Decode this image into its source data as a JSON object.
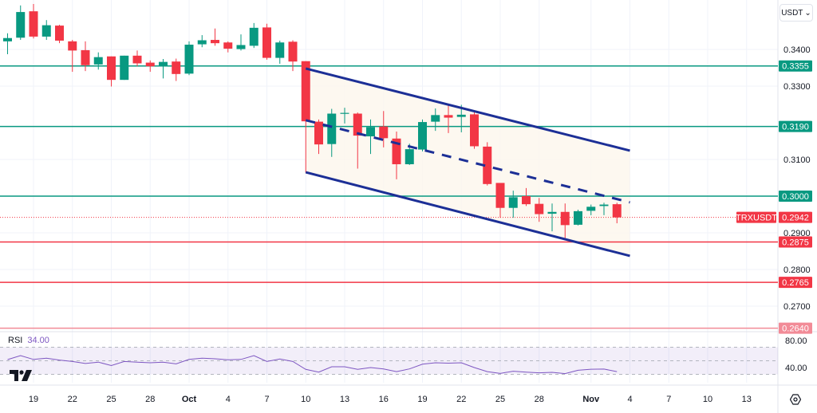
{
  "header": {
    "currency_button": "USDT",
    "currency_chevron": "chevron-down-icon"
  },
  "rsi": {
    "label": "RSI",
    "value": "34.00",
    "axis_labels": [
      "80.00",
      "40.00"
    ]
  },
  "colors": {
    "up": "#089981",
    "down": "#f23645",
    "channel": "#1c2f96",
    "rsi_line": "#7e57c2",
    "support_light": "#f28b97"
  },
  "chart_data": {
    "type": "candlestick",
    "symbol": "TRXUSDT",
    "last_price": "0.2942",
    "ylim": [
      0.2605,
      0.353
    ],
    "y_ticks": [
      "0.3400",
      "0.3300",
      "0.3100",
      "0.2900",
      "0.2800",
      "0.2700"
    ],
    "x_ticks": [
      {
        "label": "19",
        "date": "Sep 19"
      },
      {
        "label": "22",
        "date": "Sep 22"
      },
      {
        "label": "25",
        "date": "Sep 25"
      },
      {
        "label": "28",
        "date": "Sep 28"
      },
      {
        "label": "Oct",
        "date": "Oct 1",
        "bold": true
      },
      {
        "label": "4",
        "date": "Oct 4"
      },
      {
        "label": "7",
        "date": "Oct 7"
      },
      {
        "label": "10",
        "date": "Oct 10"
      },
      {
        "label": "13",
        "date": "Oct 13"
      },
      {
        "label": "16",
        "date": "Oct 16"
      },
      {
        "label": "19",
        "date": "Oct 19"
      },
      {
        "label": "22",
        "date": "Oct 22"
      },
      {
        "label": "25",
        "date": "Oct 25"
      },
      {
        "label": "28",
        "date": "Oct 28"
      },
      {
        "label": "Nov",
        "date": "Nov 1",
        "bold": true
      },
      {
        "label": "4",
        "date": "Nov 4"
      },
      {
        "label": "7",
        "date": "Nov 7"
      },
      {
        "label": "10",
        "date": "Nov 10"
      },
      {
        "label": "13",
        "date": "Nov 13"
      }
    ],
    "candles": [
      {
        "date": "Sep 17",
        "o": 0.3422,
        "h": 0.3444,
        "l": 0.3387,
        "c": 0.3431
      },
      {
        "date": "Sep 18",
        "o": 0.3432,
        "h": 0.352,
        "l": 0.3426,
        "c": 0.3502
      },
      {
        "date": "Sep 19",
        "o": 0.3504,
        "h": 0.3524,
        "l": 0.343,
        "c": 0.3435
      },
      {
        "date": "Sep 20",
        "o": 0.3435,
        "h": 0.348,
        "l": 0.3426,
        "c": 0.3466
      },
      {
        "date": "Sep 21",
        "o": 0.3465,
        "h": 0.3467,
        "l": 0.3417,
        "c": 0.3424
      },
      {
        "date": "Sep 22",
        "o": 0.3422,
        "h": 0.3426,
        "l": 0.3339,
        "c": 0.3397
      },
      {
        "date": "Sep 23",
        "o": 0.3398,
        "h": 0.3422,
        "l": 0.3341,
        "c": 0.3357
      },
      {
        "date": "Sep 24",
        "o": 0.3359,
        "h": 0.3392,
        "l": 0.3345,
        "c": 0.3379
      },
      {
        "date": "Sep 25",
        "o": 0.3381,
        "h": 0.3381,
        "l": 0.3299,
        "c": 0.3317
      },
      {
        "date": "Sep 26",
        "o": 0.3317,
        "h": 0.3383,
        "l": 0.3317,
        "c": 0.3383
      },
      {
        "date": "Sep 27",
        "o": 0.3383,
        "h": 0.3397,
        "l": 0.3354,
        "c": 0.3362
      },
      {
        "date": "Sep 28",
        "o": 0.3364,
        "h": 0.337,
        "l": 0.3339,
        "c": 0.3354
      },
      {
        "date": "Sep 29",
        "o": 0.3354,
        "h": 0.3374,
        "l": 0.3321,
        "c": 0.3366
      },
      {
        "date": "Sep 30",
        "o": 0.3367,
        "h": 0.3375,
        "l": 0.3314,
        "c": 0.3333
      },
      {
        "date": "Oct 1",
        "o": 0.3334,
        "h": 0.3422,
        "l": 0.333,
        "c": 0.3413
      },
      {
        "date": "Oct 2",
        "o": 0.3414,
        "h": 0.3439,
        "l": 0.3406,
        "c": 0.3425
      },
      {
        "date": "Oct 3",
        "o": 0.3426,
        "h": 0.3457,
        "l": 0.341,
        "c": 0.3417
      },
      {
        "date": "Oct 4",
        "o": 0.3419,
        "h": 0.3422,
        "l": 0.3392,
        "c": 0.3402
      },
      {
        "date": "Oct 5",
        "o": 0.3401,
        "h": 0.3441,
        "l": 0.3397,
        "c": 0.3412
      },
      {
        "date": "Oct 6",
        "o": 0.341,
        "h": 0.3472,
        "l": 0.3404,
        "c": 0.3459
      },
      {
        "date": "Oct 7",
        "o": 0.346,
        "h": 0.347,
        "l": 0.3372,
        "c": 0.3377
      },
      {
        "date": "Oct 8",
        "o": 0.3377,
        "h": 0.3424,
        "l": 0.3361,
        "c": 0.3419
      },
      {
        "date": "Oct 9",
        "o": 0.3421,
        "h": 0.3425,
        "l": 0.3341,
        "c": 0.3367
      },
      {
        "date": "Oct 10",
        "o": 0.3368,
        "h": 0.3368,
        "l": 0.3064,
        "c": 0.3204
      },
      {
        "date": "Oct 11",
        "o": 0.3203,
        "h": 0.3209,
        "l": 0.3115,
        "c": 0.3141
      },
      {
        "date": "Oct 12",
        "o": 0.3142,
        "h": 0.3238,
        "l": 0.3107,
        "c": 0.3225
      },
      {
        "date": "Oct 13",
        "o": 0.3225,
        "h": 0.3241,
        "l": 0.3198,
        "c": 0.3227
      },
      {
        "date": "Oct 14",
        "o": 0.3225,
        "h": 0.3228,
        "l": 0.3075,
        "c": 0.3165
      },
      {
        "date": "Oct 15",
        "o": 0.3163,
        "h": 0.3209,
        "l": 0.3115,
        "c": 0.3188
      },
      {
        "date": "Oct 16",
        "o": 0.319,
        "h": 0.3232,
        "l": 0.3133,
        "c": 0.3158
      },
      {
        "date": "Oct 17",
        "o": 0.3157,
        "h": 0.3176,
        "l": 0.3046,
        "c": 0.3087
      },
      {
        "date": "Oct 18",
        "o": 0.3087,
        "h": 0.3143,
        "l": 0.3085,
        "c": 0.3128
      },
      {
        "date": "Oct 19",
        "o": 0.3127,
        "h": 0.3209,
        "l": 0.3122,
        "c": 0.3202
      },
      {
        "date": "Oct 20",
        "o": 0.3203,
        "h": 0.3239,
        "l": 0.3178,
        "c": 0.3221
      },
      {
        "date": "Oct 21",
        "o": 0.3221,
        "h": 0.3251,
        "l": 0.3172,
        "c": 0.3214
      },
      {
        "date": "Oct 22",
        "o": 0.3216,
        "h": 0.3249,
        "l": 0.3174,
        "c": 0.3222
      },
      {
        "date": "Oct 23",
        "o": 0.3223,
        "h": 0.3232,
        "l": 0.3129,
        "c": 0.3136
      },
      {
        "date": "Oct 24",
        "o": 0.3135,
        "h": 0.3147,
        "l": 0.3029,
        "c": 0.3033
      },
      {
        "date": "Oct 25",
        "o": 0.3036,
        "h": 0.3036,
        "l": 0.2941,
        "c": 0.2968
      },
      {
        "date": "Oct 26",
        "o": 0.2968,
        "h": 0.3015,
        "l": 0.2941,
        "c": 0.2997
      },
      {
        "date": "Oct 27",
        "o": 0.3,
        "h": 0.3022,
        "l": 0.2973,
        "c": 0.2978
      },
      {
        "date": "Oct 28",
        "o": 0.2979,
        "h": 0.2995,
        "l": 0.293,
        "c": 0.2951
      },
      {
        "date": "Oct 29",
        "o": 0.2952,
        "h": 0.298,
        "l": 0.2904,
        "c": 0.2957
      },
      {
        "date": "Oct 30",
        "o": 0.2957,
        "h": 0.298,
        "l": 0.2883,
        "c": 0.2921
      },
      {
        "date": "Oct 31",
        "o": 0.2922,
        "h": 0.2963,
        "l": 0.292,
        "c": 0.2959
      },
      {
        "date": "Nov 1",
        "o": 0.296,
        "h": 0.2977,
        "l": 0.2948,
        "c": 0.2971
      },
      {
        "date": "Nov 2",
        "o": 0.2973,
        "h": 0.2982,
        "l": 0.2948,
        "c": 0.2977
      },
      {
        "date": "Nov 3",
        "o": 0.2978,
        "h": 0.2982,
        "l": 0.2926,
        "c": 0.2942
      }
    ],
    "levels": [
      {
        "value": "0.3355",
        "color": "#089981"
      },
      {
        "value": "0.3190",
        "color": "#089981"
      },
      {
        "value": "0.3000",
        "color": "#089981"
      },
      {
        "value": "0.2875",
        "color": "#f23645"
      },
      {
        "value": "0.2765",
        "color": "#f23645"
      },
      {
        "value": "0.2640",
        "color": "#f28b97"
      }
    ],
    "channel": {
      "upper": [
        [
          "Oct 10",
          0.3348
        ],
        [
          "Nov 4",
          0.3124
        ]
      ],
      "middle": [
        [
          "Oct 10",
          0.3207
        ],
        [
          "Nov 4",
          0.2983
        ]
      ],
      "lower": [
        [
          "Oct 10",
          0.3065
        ],
        [
          "Nov 4",
          0.2837
        ]
      ]
    },
    "rsi_series": [
      51.8,
      57.6,
      52,
      53.8,
      51,
      49,
      46,
      48,
      43,
      49,
      48,
      47,
      48,
      45.5,
      52,
      53.8,
      53,
      51.4,
      52,
      57.6,
      49,
      52.6,
      49,
      37.3,
      33.3,
      41.2,
      41.2,
      37.3,
      40,
      38,
      34,
      38,
      45,
      47,
      46.5,
      47,
      40,
      34,
      31.4,
      34.6,
      33.3,
      32.2,
      32.9,
      31,
      36,
      37.5,
      37.8,
      34
    ],
    "rsi_bands": [
      70,
      50,
      30
    ]
  }
}
